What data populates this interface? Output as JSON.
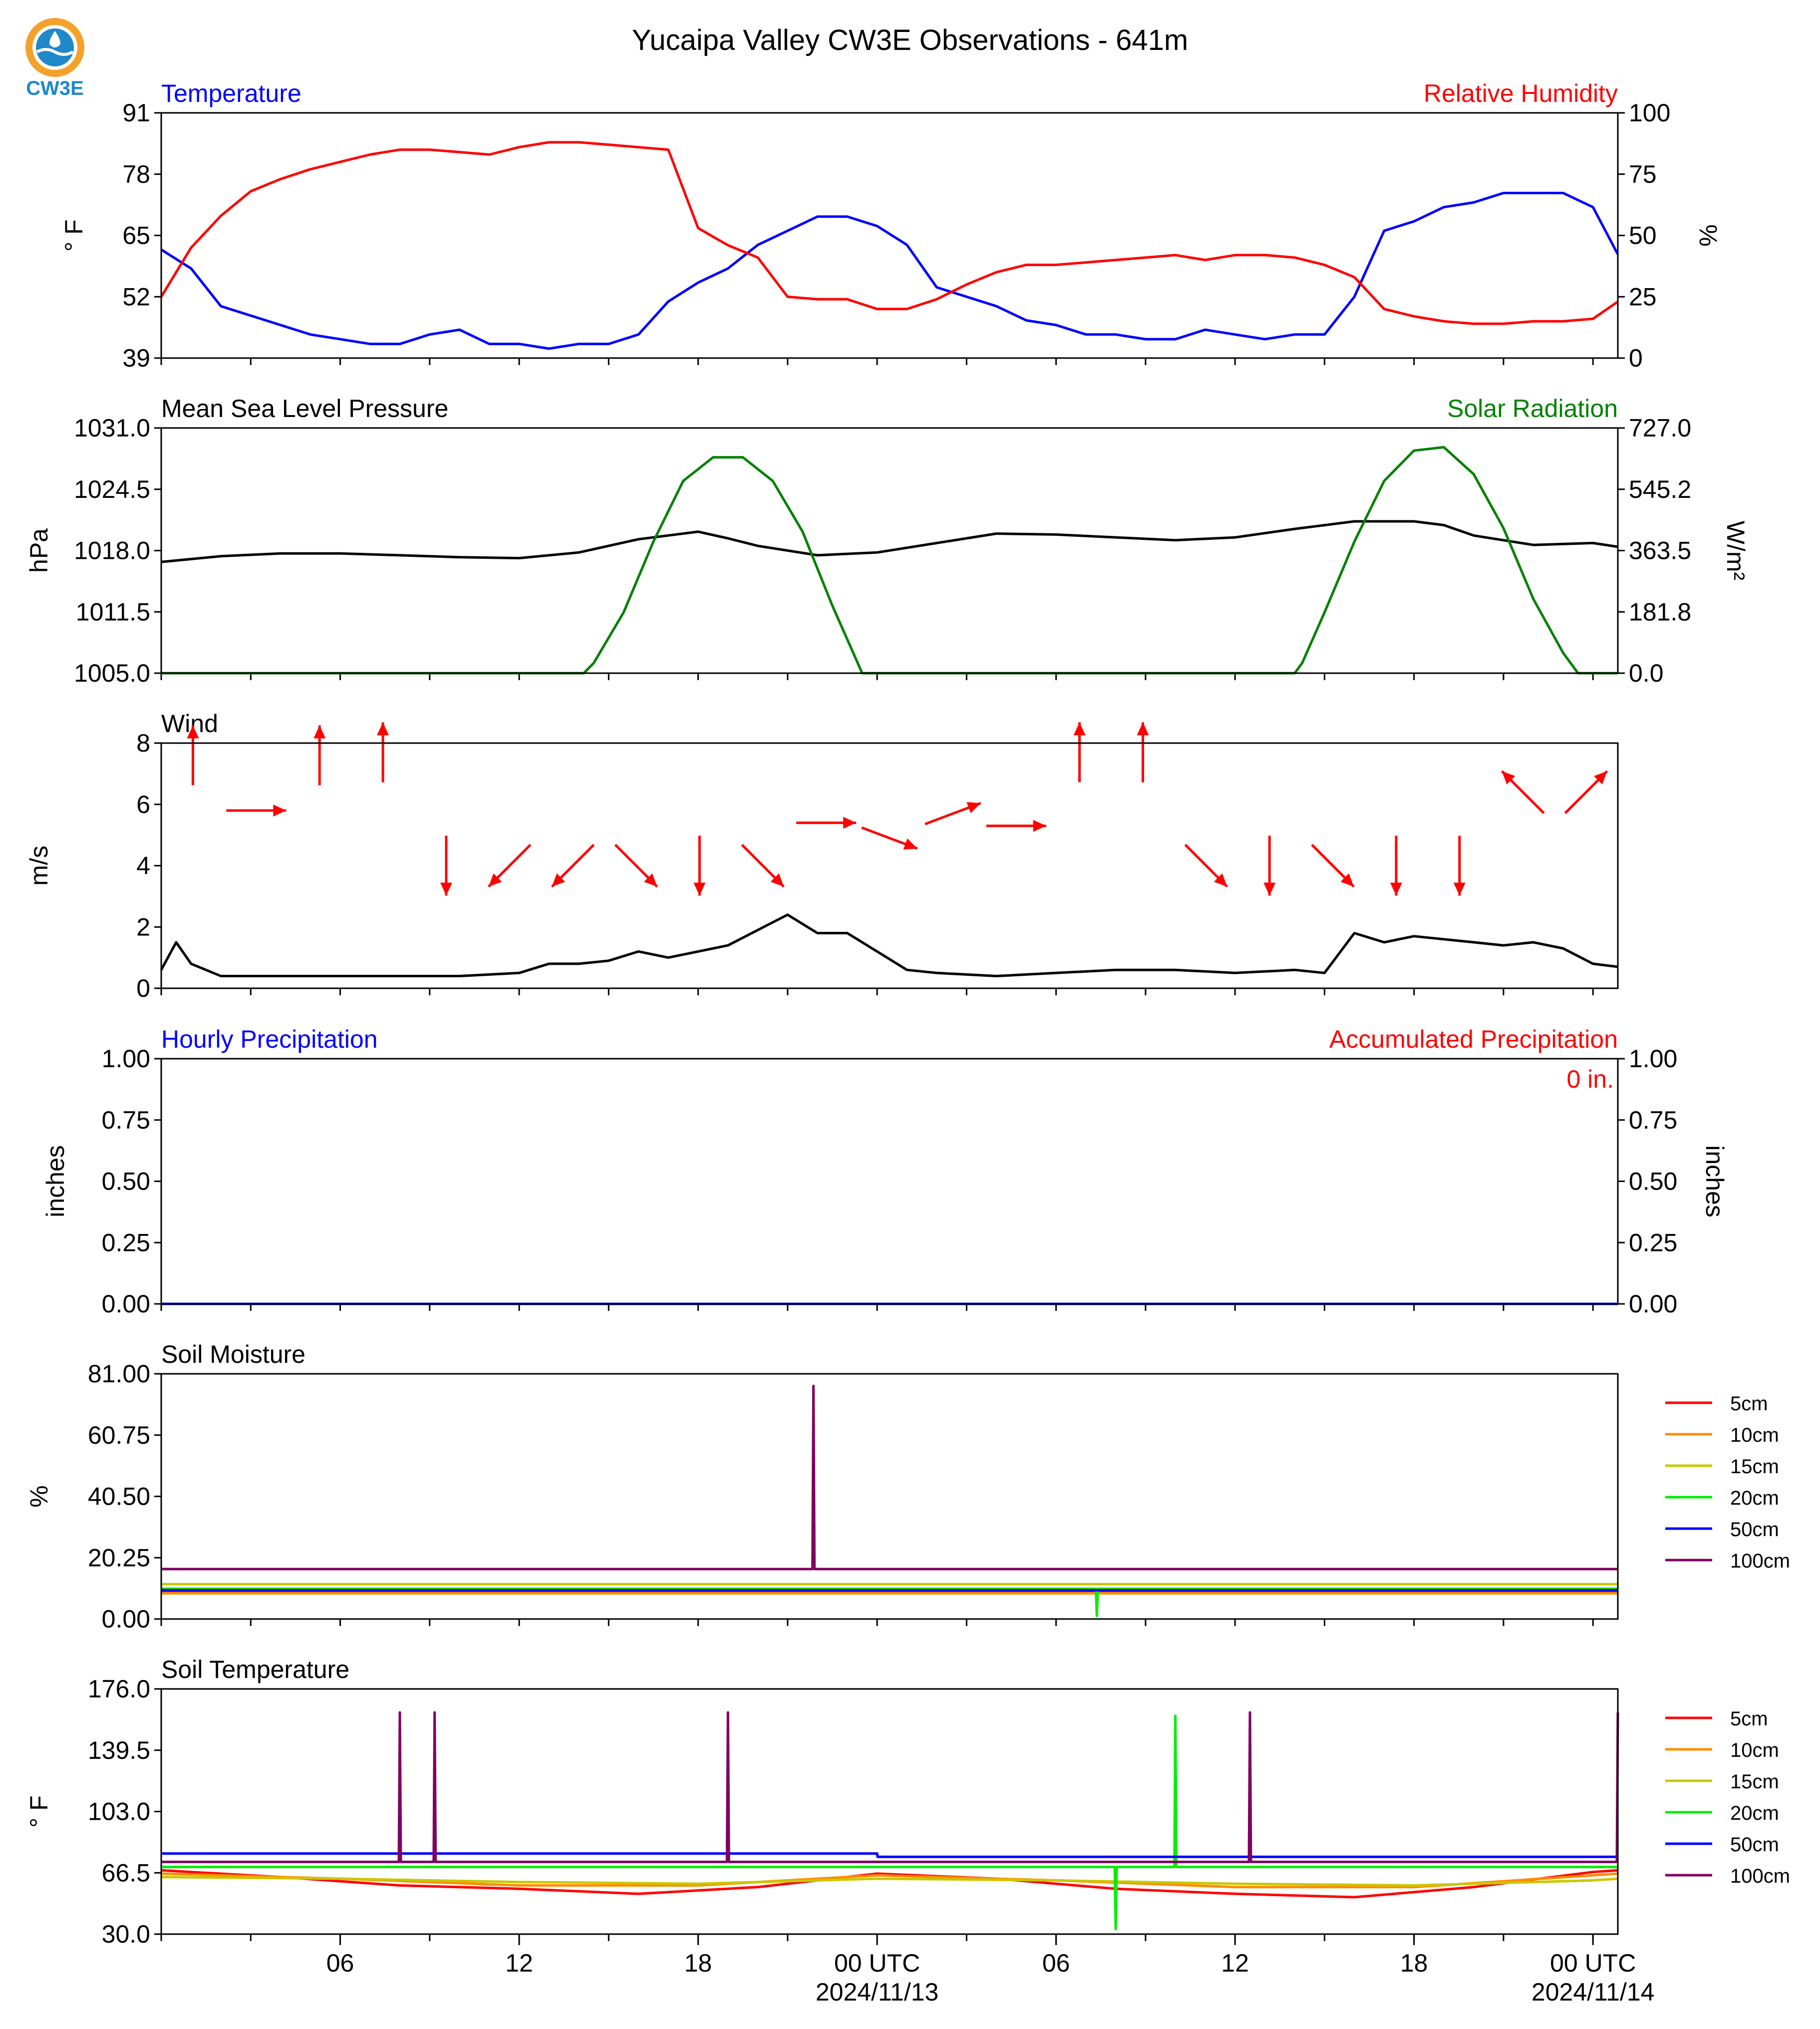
{
  "page": {
    "title": "Yucaipa Valley CW3E Observations - 641m",
    "logo_text": "CW3E"
  },
  "colors": {
    "temperature": "#0000ff",
    "humidity": "#ff0000",
    "pressure": "#000000",
    "solar": "#008000",
    "wind": "#000000",
    "wind_arrows": "#ff0000",
    "precip_hourly": "#0000ff",
    "precip_accum": "#ff0000",
    "soil_depths": {
      "5cm": "#ff0000",
      "10cm": "#ff8c00",
      "15cm": "#c8c800",
      "20cm": "#00ee00",
      "50cm": "#0000ff",
      "100cm": "#800060"
    },
    "logo_orange": "#f4a12a",
    "logo_blue": "#1e88c8"
  },
  "x_axis": {
    "start": "2024-11-12 00:00 UTC",
    "end": "2024-11-14 00:50 UTC",
    "tick_labels": [
      "06",
      "12",
      "18",
      "00 UTC",
      "06",
      "12",
      "18",
      "00 UTC"
    ],
    "date_labels": [
      "2024/11/13",
      "2024/11/14"
    ],
    "grid": false
  },
  "chart_data": [
    {
      "id": "temp_rh",
      "type": "line",
      "left_label": "Temperature",
      "right_label": "Relative Humidity",
      "ylabel": "° F",
      "ylabel_right": "%",
      "ylim": [
        39,
        91
      ],
      "ylim_right": [
        0,
        100
      ],
      "yticks": [
        "39",
        "52",
        "65",
        "78",
        "91"
      ],
      "yticks_right": [
        "0",
        "25",
        "50",
        "75",
        "100"
      ],
      "series": [
        {
          "name": "Temperature",
          "axis": "left",
          "x": [
            "2024-11-12 00:00",
            "01:00",
            "02:00",
            "03:00",
            "04:00",
            "05:00",
            "06:00",
            "07:00",
            "08:00",
            "09:00",
            "10:00",
            "11:00",
            "12:00",
            "13:00",
            "14:00",
            "15:00",
            "16:00",
            "17:00",
            "18:00",
            "19:00",
            "20:00",
            "21:00",
            "22:00",
            "23:00",
            "2024-11-13 00:00",
            "01:00",
            "02:00",
            "03:00",
            "04:00",
            "05:00",
            "06:00",
            "07:00",
            "08:00",
            "09:00",
            "10:00",
            "11:00",
            "12:00",
            "13:00",
            "14:00",
            "15:00",
            "16:00",
            "17:00",
            "18:00",
            "19:00",
            "20:00",
            "21:00",
            "22:00",
            "23:00",
            "2024-11-14 00:00",
            "00:50"
          ],
          "values": [
            62,
            58,
            50,
            48,
            46,
            44,
            43,
            42,
            42,
            44,
            45,
            42,
            42,
            41,
            42,
            42,
            44,
            51,
            55,
            58,
            63,
            66,
            69,
            69,
            67,
            63,
            54,
            52,
            50,
            47,
            46,
            44,
            44,
            43,
            43,
            45,
            44,
            43,
            44,
            44,
            52,
            66,
            68,
            71,
            72,
            74,
            74,
            74,
            71,
            61
          ]
        },
        {
          "name": "Relative Humidity",
          "axis": "right",
          "x": [
            "2024-11-12 00:00",
            "01:00",
            "02:00",
            "03:00",
            "04:00",
            "05:00",
            "06:00",
            "07:00",
            "08:00",
            "09:00",
            "10:00",
            "11:00",
            "12:00",
            "13:00",
            "14:00",
            "15:00",
            "16:00",
            "17:00",
            "18:00",
            "19:00",
            "20:00",
            "21:00",
            "22:00",
            "23:00",
            "2024-11-13 00:00",
            "01:00",
            "02:00",
            "03:00",
            "04:00",
            "05:00",
            "06:00",
            "07:00",
            "08:00",
            "09:00",
            "10:00",
            "11:00",
            "12:00",
            "13:00",
            "14:00",
            "15:00",
            "16:00",
            "17:00",
            "18:00",
            "19:00",
            "20:00",
            "21:00",
            "22:00",
            "23:00",
            "2024-11-14 00:00",
            "00:50"
          ],
          "values": [
            25,
            45,
            58,
            68,
            73,
            77,
            80,
            83,
            85,
            85,
            84,
            83,
            86,
            88,
            88,
            87,
            86,
            85,
            53,
            46,
            41,
            25,
            24,
            24,
            20,
            20,
            24,
            30,
            35,
            38,
            38,
            39,
            40,
            41,
            42,
            40,
            42,
            42,
            41,
            38,
            33,
            20,
            17,
            15,
            14,
            14,
            15,
            15,
            16,
            23
          ]
        }
      ]
    },
    {
      "id": "pressure_solar",
      "type": "line",
      "left_label": "Mean Sea Level Pressure",
      "right_label": "Solar Radiation",
      "ylabel": "hPa",
      "ylabel_right": "W/m²",
      "ylim": [
        1005.0,
        1031.0
      ],
      "ylim_right": [
        0.0,
        727.0
      ],
      "yticks": [
        "1005.0",
        "1011.5",
        "1018.0",
        "1024.5",
        "1031.0"
      ],
      "yticks_right": [
        "0.0",
        "181.8",
        "363.5",
        "545.2",
        "727.0"
      ],
      "series": [
        {
          "name": "Mean Sea Level Pressure",
          "axis": "left",
          "x": [
            "2024-11-12 00:00",
            "02:00",
            "04:00",
            "06:00",
            "08:00",
            "10:00",
            "12:00",
            "14:00",
            "16:00",
            "18:00",
            "19:00",
            "20:00",
            "22:00",
            "2024-11-13 00:00",
            "02:00",
            "04:00",
            "06:00",
            "08:00",
            "10:00",
            "12:00",
            "14:00",
            "16:00",
            "18:00",
            "19:00",
            "20:00",
            "22:00",
            "2024-11-14 00:00",
            "00:50"
          ],
          "values": [
            1016.8,
            1017.4,
            1017.7,
            1017.7,
            1017.5,
            1017.3,
            1017.2,
            1017.8,
            1019.2,
            1020.0,
            1019.3,
            1018.5,
            1017.5,
            1017.8,
            1018.8,
            1019.8,
            1019.7,
            1019.4,
            1019.1,
            1019.4,
            1020.3,
            1021.1,
            1021.1,
            1020.7,
            1019.6,
            1018.6,
            1018.8,
            1018.4
          ]
        },
        {
          "name": "Solar Radiation",
          "axis": "right",
          "x": [
            "2024-11-12 00:00",
            "14:10",
            "14:30",
            "15:30",
            "16:30",
            "17:30",
            "18:30",
            "19:30",
            "20:30",
            "21:30",
            "22:30",
            "23:15",
            "23:30",
            "2024-11-13 00:00",
            "14:00",
            "14:15",
            "15:00",
            "16:00",
            "17:00",
            "18:00",
            "19:00",
            "20:00",
            "21:00",
            "22:00",
            "23:00",
            "23:30",
            "2024-11-14 00:00",
            "00:50"
          ],
          "values": [
            0,
            0,
            30,
            180,
            390,
            570,
            640,
            640,
            570,
            420,
            200,
            50,
            0,
            0,
            0,
            30,
            180,
            390,
            570,
            660,
            670,
            590,
            430,
            220,
            60,
            0,
            0,
            0
          ]
        }
      ]
    },
    {
      "id": "wind",
      "type": "line",
      "left_label": "Wind",
      "ylabel": "m/s",
      "ylim": [
        0,
        8
      ],
      "yticks": [
        "0",
        "2",
        "4",
        "6",
        "8"
      ],
      "series": [
        {
          "name": "Wind",
          "x": [
            "2024-11-12 00:00",
            "00:30",
            "01:00",
            "02:00",
            "04:00",
            "06:00",
            "08:00",
            "10:00",
            "12:00",
            "13:00",
            "14:00",
            "15:00",
            "16:00",
            "17:00",
            "18:00",
            "19:00",
            "20:00",
            "21:00",
            "22:00",
            "23:00",
            "2024-11-13 00:00",
            "01:00",
            "02:00",
            "04:00",
            "06:00",
            "08:00",
            "10:00",
            "12:00",
            "14:00",
            "15:00",
            "16:00",
            "17:00",
            "18:00",
            "19:00",
            "20:00",
            "21:00",
            "22:00",
            "23:00",
            "2024-11-14 00:00",
            "00:50"
          ],
          "values": [
            0.6,
            1.5,
            0.8,
            0.4,
            0.4,
            0.4,
            0.4,
            0.4,
            0.5,
            0.8,
            0.8,
            0.9,
            1.2,
            1.0,
            1.2,
            1.4,
            1.9,
            2.4,
            1.8,
            1.8,
            1.2,
            0.6,
            0.5,
            0.4,
            0.5,
            0.6,
            0.6,
            0.5,
            0.6,
            0.5,
            1.8,
            1.5,
            1.7,
            1.6,
            1.5,
            1.4,
            1.5,
            1.3,
            0.8,
            0.7
          ]
        }
      ],
      "arrows": [
        {
          "speed": 7.6,
          "dir": "N"
        },
        {
          "speed": 5.8,
          "dir": "E"
        },
        {
          "speed": 7.6,
          "dir": "N"
        },
        {
          "speed": 7.7,
          "dir": "N"
        },
        {
          "speed": 4.0,
          "dir": "S"
        },
        {
          "speed": 4.0,
          "dir": "SW"
        },
        {
          "speed": 4.0,
          "dir": "SW"
        },
        {
          "speed": 4.0,
          "dir": "SE"
        },
        {
          "speed": 4.0,
          "dir": "S"
        },
        {
          "speed": 4.0,
          "dir": "SE"
        },
        {
          "speed": 5.4,
          "dir": "E"
        },
        {
          "speed": 4.9,
          "dir": "ESE"
        },
        {
          "speed": 5.7,
          "dir": "ENE"
        },
        {
          "speed": 5.3,
          "dir": "E"
        },
        {
          "speed": 7.7,
          "dir": "N"
        },
        {
          "speed": 7.7,
          "dir": "N"
        },
        {
          "speed": 4.0,
          "dir": "SE"
        },
        {
          "speed": 4.0,
          "dir": "S"
        },
        {
          "speed": 4.0,
          "dir": "SE"
        },
        {
          "speed": 4.0,
          "dir": "S"
        },
        {
          "speed": 4.0,
          "dir": "S"
        },
        {
          "speed": 6.4,
          "dir": "NW"
        },
        {
          "speed": 6.4,
          "dir": "NE"
        }
      ]
    },
    {
      "id": "precip",
      "type": "line",
      "left_label": "Hourly Precipitation",
      "right_label": "Accumulated Precipitation",
      "accum_text": "0 in.",
      "ylabel": "inches",
      "ylabel_right": "inches",
      "ylim": [
        0,
        1
      ],
      "ylim_right": [
        0,
        1
      ],
      "yticks": [
        "0.00",
        "0.25",
        "0.50",
        "0.75",
        "1.00"
      ],
      "yticks_right": [
        "0.00",
        "0.25",
        "0.50",
        "0.75",
        "1.00"
      ],
      "series": [
        {
          "name": "Hourly Precipitation",
          "x": [
            "2024-11-12 00:00",
            "2024-11-14 00:50"
          ],
          "values": [
            0,
            0
          ]
        }
      ]
    },
    {
      "id": "soil_moisture",
      "type": "line",
      "left_label": "Soil Moisture",
      "ylabel": "%",
      "ylim": [
        0.0,
        81.0
      ],
      "yticks": [
        "0.00",
        "20.25",
        "40.50",
        "60.75",
        "81.00"
      ],
      "legend": [
        "5cm",
        "10cm",
        "15cm",
        "20cm",
        "50cm",
        "100cm"
      ],
      "series": [
        {
          "name": "5cm",
          "x": [
            "2024-11-12 00:00",
            "2024-11-14 00:50"
          ],
          "values": [
            9.0,
            9.0
          ]
        },
        {
          "name": "10cm",
          "x": [
            "2024-11-12 00:00",
            "2024-11-14 00:50"
          ],
          "values": [
            8.5,
            8.5
          ]
        },
        {
          "name": "15cm",
          "x": [
            "2024-11-12 00:00",
            "2024-11-14 00:50"
          ],
          "values": [
            11.5,
            11.5
          ]
        },
        {
          "name": "20cm",
          "x": [
            "2024-11-12 00:00",
            "2024-11-13 07:20",
            "2024-11-13 07:22",
            "2024-11-13 07:24",
            "2024-11-14 00:50"
          ],
          "values": [
            10.0,
            10.0,
            1.0,
            10.0,
            10.0
          ]
        },
        {
          "name": "50cm",
          "x": [
            "2024-11-12 00:00",
            "2024-11-14 00:50"
          ],
          "values": [
            9.5,
            9.5
          ]
        },
        {
          "name": "100cm",
          "x": [
            "2024-11-12 00:00",
            "2024-11-12 21:50",
            "2024-11-12 21:52",
            "2024-11-12 21:54",
            "2024-11-14 00:50"
          ],
          "values": [
            16.5,
            16.5,
            77.0,
            16.5,
            16.5
          ]
        }
      ]
    },
    {
      "id": "soil_temperature",
      "type": "line",
      "left_label": "Soil Temperature",
      "ylabel": "° F",
      "ylim": [
        30.0,
        176.0
      ],
      "yticks": [
        "30.0",
        "66.5",
        "103.0",
        "139.5",
        "176.0"
      ],
      "legend": [
        "5cm",
        "10cm",
        "15cm",
        "20cm",
        "50cm",
        "100cm"
      ],
      "series": [
        {
          "name": "5cm",
          "x": [
            "2024-11-12 00:00",
            "04:00",
            "08:00",
            "12:00",
            "16:00",
            "20:00",
            "2024-11-13 00:00",
            "04:00",
            "08:00",
            "12:00",
            "16:00",
            "20:00",
            "2024-11-14 00:00",
            "00:50"
          ],
          "values": [
            68,
            64,
            59,
            57,
            54,
            58,
            66,
            63,
            57,
            54,
            52,
            58,
            67,
            68
          ]
        },
        {
          "name": "10cm",
          "x": [
            "2024-11-12 00:00",
            "06:00",
            "12:00",
            "18:00",
            "2024-11-13 00:00",
            "06:00",
            "12:00",
            "18:00",
            "2024-11-14 00:00",
            "00:50"
          ],
          "values": [
            66,
            63,
            59,
            59,
            65,
            62,
            58,
            58,
            65,
            66
          ]
        },
        {
          "name": "15cm",
          "x": [
            "2024-11-12 00:00",
            "06:00",
            "12:00",
            "18:00",
            "2024-11-13 00:00",
            "06:00",
            "12:00",
            "18:00",
            "2024-11-14 00:00",
            "00:50"
          ],
          "values": [
            64,
            63,
            61,
            60,
            63,
            62,
            60,
            59,
            62,
            63
          ]
        },
        {
          "name": "20cm",
          "x": [
            "2024-11-12 00:00",
            "2024-11-13 07:58",
            "2024-11-13 08:00",
            "2024-11-13 08:02",
            "2024-11-13 09:58",
            "2024-11-13 10:00",
            "2024-11-13 10:02",
            "2024-11-14 00:50"
          ],
          "values": [
            70,
            70,
            33,
            70,
            70,
            160,
            70,
            70
          ]
        },
        {
          "name": "50cm",
          "x": [
            "2024-11-12 00:00",
            "2024-11-13 00:00",
            "2024-11-13 00:01",
            "2024-11-14 00:50"
          ],
          "values": [
            78,
            78,
            76,
            76
          ]
        },
        {
          "name": "100cm",
          "x": [
            "2024-11-12 00:00",
            "2024-11-12 07:58",
            "2024-11-12 08:00",
            "2024-11-12 08:02",
            "2024-11-12 09:08",
            "2024-11-12 09:10",
            "2024-11-12 09:12",
            "2024-11-12 18:58",
            "2024-11-12 19:00",
            "2024-11-12 19:02",
            "2024-11-13 12:28",
            "2024-11-13 12:30",
            "2024-11-13 12:32",
            "2024-11-14 00:48",
            "2024-11-14 00:50"
          ],
          "values": [
            73,
            73,
            162,
            73,
            73,
            162,
            73,
            73,
            162,
            73,
            73,
            162,
            73,
            73,
            162
          ]
        }
      ]
    }
  ]
}
